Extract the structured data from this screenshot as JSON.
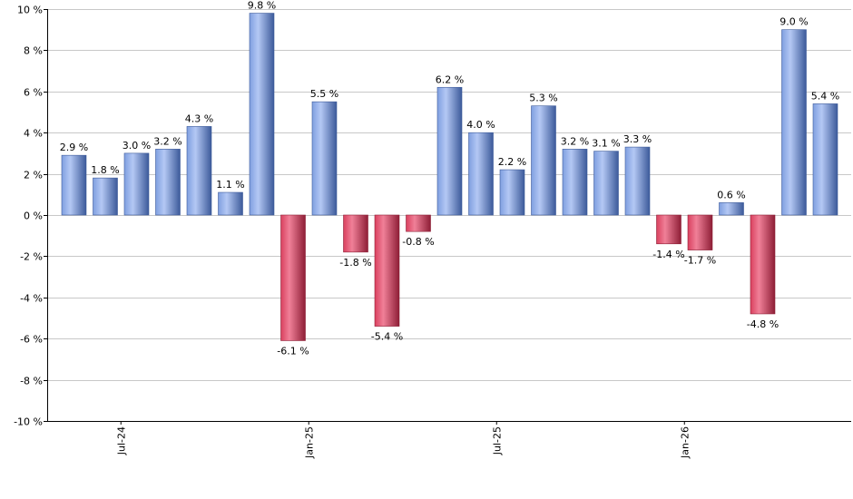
{
  "chart_data": {
    "type": "bar",
    "title": "",
    "xlabel": "",
    "ylabel": "",
    "ylim": [
      -10,
      10
    ],
    "y_ticks": [
      10,
      8,
      6,
      4,
      2,
      0,
      -2,
      -4,
      -6,
      -8,
      -10
    ],
    "y_tick_labels": [
      "10 %",
      "8 %",
      "6 %",
      "4 %",
      "2 %",
      "0 %",
      "-2 %",
      "-4 %",
      "-6 %",
      "-8 %",
      "-10 %"
    ],
    "x_tick_labels": [
      {
        "label": "Jul-24",
        "index": 1.5
      },
      {
        "label": "Jan-25",
        "index": 7.5
      },
      {
        "label": "Jul-25",
        "index": 13.5
      },
      {
        "label": "Jan-26",
        "index": 19.5
      }
    ],
    "grid": true,
    "legend": "none",
    "values": [
      2.9,
      1.8,
      3.0,
      3.2,
      4.3,
      1.1,
      9.8,
      -6.1,
      5.5,
      -1.8,
      -5.4,
      -0.8,
      6.2,
      4.0,
      2.2,
      5.3,
      3.2,
      3.1,
      3.3,
      -1.4,
      -1.7,
      0.6,
      -4.8,
      9.0,
      5.4
    ],
    "data_labels": [
      "2.9 %",
      "1.8 %",
      "3.0 %",
      "3.2 %",
      "4.3 %",
      "1.1 %",
      "9.8 %",
      "-6.1 %",
      "5.5 %",
      "-1.8 %",
      "-5.4 %",
      "-0.8 %",
      "6.2 %",
      "4.0 %",
      "2.2 %",
      "5.3 %",
      "3.2 %",
      "3.1 %",
      "3.3 %",
      "-1.4 %",
      "-1.7 %",
      "0.6 %",
      "-4.8 %",
      "9.0 %",
      "5.4 %"
    ],
    "colors": {
      "positive": "#7f9fe0",
      "positive_dark": "#3c5a9a",
      "positive_light": "#b4c8f4",
      "negative": "#d9405e",
      "negative_dark": "#8e1e36",
      "negative_light": "#f08098",
      "grid": "#c8c8c8"
    }
  }
}
